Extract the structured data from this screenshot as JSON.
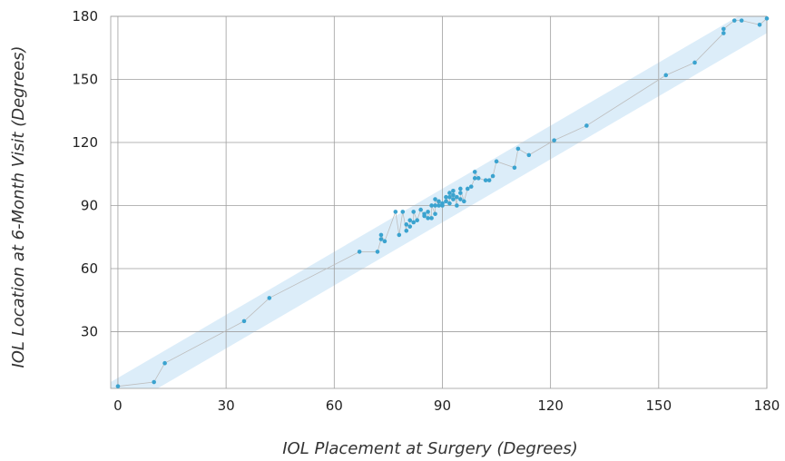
{
  "chart_data": {
    "type": "scatter",
    "title": "",
    "xlabel": "IOL Placement at Surgery (Degrees)",
    "ylabel": "IOL Location at 6-Month Visit (Degrees)",
    "xlim": [
      -2,
      180
    ],
    "ylim": [
      3,
      180
    ],
    "x_ticks": [
      0,
      30,
      60,
      90,
      120,
      150,
      180
    ],
    "y_ticks": [
      30,
      60,
      90,
      120,
      150,
      180
    ],
    "x_tick_labels": [
      "0",
      "30",
      "60",
      "90",
      "120",
      "150",
      "180"
    ],
    "y_tick_labels": [
      "30",
      "60",
      "90",
      "120",
      "150",
      "180"
    ],
    "grid": true,
    "band_halfwidth": 8,
    "colors": {
      "points": "#3ba3cf",
      "band": "#d6eaf8",
      "lines": "#bdbdbd",
      "grid": "#9e9e9e"
    },
    "points": [
      [
        0,
        4
      ],
      [
        10,
        6
      ],
      [
        13,
        15
      ],
      [
        35,
        35
      ],
      [
        42,
        46
      ],
      [
        67,
        68
      ],
      [
        72,
        68
      ],
      [
        73,
        76
      ],
      [
        73,
        74
      ],
      [
        74,
        73
      ],
      [
        77,
        87
      ],
      [
        78,
        76
      ],
      [
        79,
        87
      ],
      [
        80,
        78
      ],
      [
        80,
        81
      ],
      [
        81,
        80
      ],
      [
        81,
        83
      ],
      [
        82,
        82
      ],
      [
        82,
        87
      ],
      [
        83,
        83
      ],
      [
        84,
        88
      ],
      [
        85,
        85
      ],
      [
        85,
        86
      ],
      [
        86,
        84
      ],
      [
        86,
        87
      ],
      [
        87,
        84
      ],
      [
        87,
        90
      ],
      [
        88,
        86
      ],
      [
        88,
        90
      ],
      [
        88,
        93
      ],
      [
        89,
        90
      ],
      [
        89,
        92
      ],
      [
        90,
        90
      ],
      [
        90,
        91
      ],
      [
        91,
        94
      ],
      [
        91,
        92
      ],
      [
        92,
        91
      ],
      [
        92,
        94
      ],
      [
        92,
        96
      ],
      [
        93,
        93
      ],
      [
        93,
        95
      ],
      [
        93,
        97
      ],
      [
        94,
        90
      ],
      [
        94,
        94
      ],
      [
        95,
        93
      ],
      [
        95,
        96
      ],
      [
        95,
        98
      ],
      [
        96,
        92
      ],
      [
        97,
        98
      ],
      [
        98,
        99
      ],
      [
        99,
        103
      ],
      [
        99,
        106
      ],
      [
        100,
        103
      ],
      [
        102,
        102
      ],
      [
        103,
        102
      ],
      [
        104,
        104
      ],
      [
        105,
        111
      ],
      [
        110,
        108
      ],
      [
        111,
        117
      ],
      [
        114,
        114
      ],
      [
        121,
        121
      ],
      [
        130,
        128
      ],
      [
        152,
        152
      ],
      [
        160,
        158
      ],
      [
        168,
        172
      ],
      [
        168,
        174
      ],
      [
        171,
        178
      ],
      [
        173,
        178
      ],
      [
        178,
        176
      ],
      [
        180,
        179
      ]
    ]
  }
}
